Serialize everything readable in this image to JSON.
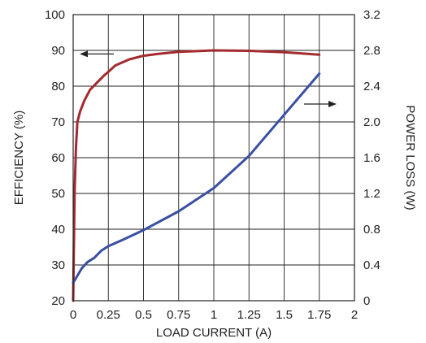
{
  "chart_data": {
    "type": "line",
    "title": "",
    "xlabel": "LOAD CURRENT (A)",
    "ylabel_left": "EFFICIENCY (%)",
    "ylabel_right": "POWER LOSS (W)",
    "xlim": [
      0,
      2
    ],
    "ylim_left": [
      20,
      100
    ],
    "ylim_right": [
      0,
      3.2
    ],
    "x_ticks": [
      "0",
      "0.25",
      "0.5",
      "0.75",
      "1",
      "1.25",
      "1.5",
      "1.75",
      "2"
    ],
    "y_left_ticks": [
      "20",
      "30",
      "40",
      "50",
      "60",
      "70",
      "80",
      "90",
      "100"
    ],
    "y_right_ticks": [
      "0",
      "0.4",
      "0.8",
      "1.2",
      "1.6",
      "2.0",
      "2.4",
      "2.8",
      "3.2"
    ],
    "grid": true,
    "series": [
      {
        "axis": "left",
        "color": "#a32a2e",
        "arrow": "left",
        "x": [
          0,
          0.01,
          0.02,
          0.03,
          0.05,
          0.08,
          0.12,
          0.17,
          0.22,
          0.25,
          0.3,
          0.4,
          0.5,
          0.6,
          0.75,
          1.0,
          1.25,
          1.5,
          1.75
        ],
        "y": [
          20,
          50,
          63,
          70,
          73,
          76,
          79,
          81,
          83,
          84,
          85.8,
          87.5,
          88.5,
          89,
          89.6,
          90,
          89.9,
          89.5,
          88.8
        ]
      },
      {
        "axis": "right",
        "color": "#3a4fa3",
        "arrow": "right",
        "x": [
          0,
          0.03,
          0.06,
          0.1,
          0.15,
          0.2,
          0.25,
          0.35,
          0.5,
          0.75,
          1.0,
          1.25,
          1.5,
          1.75
        ],
        "y": [
          0.2,
          0.28,
          0.36,
          0.43,
          0.48,
          0.56,
          0.61,
          0.68,
          0.79,
          1.0,
          1.26,
          1.62,
          2.08,
          2.54
        ]
      }
    ]
  }
}
